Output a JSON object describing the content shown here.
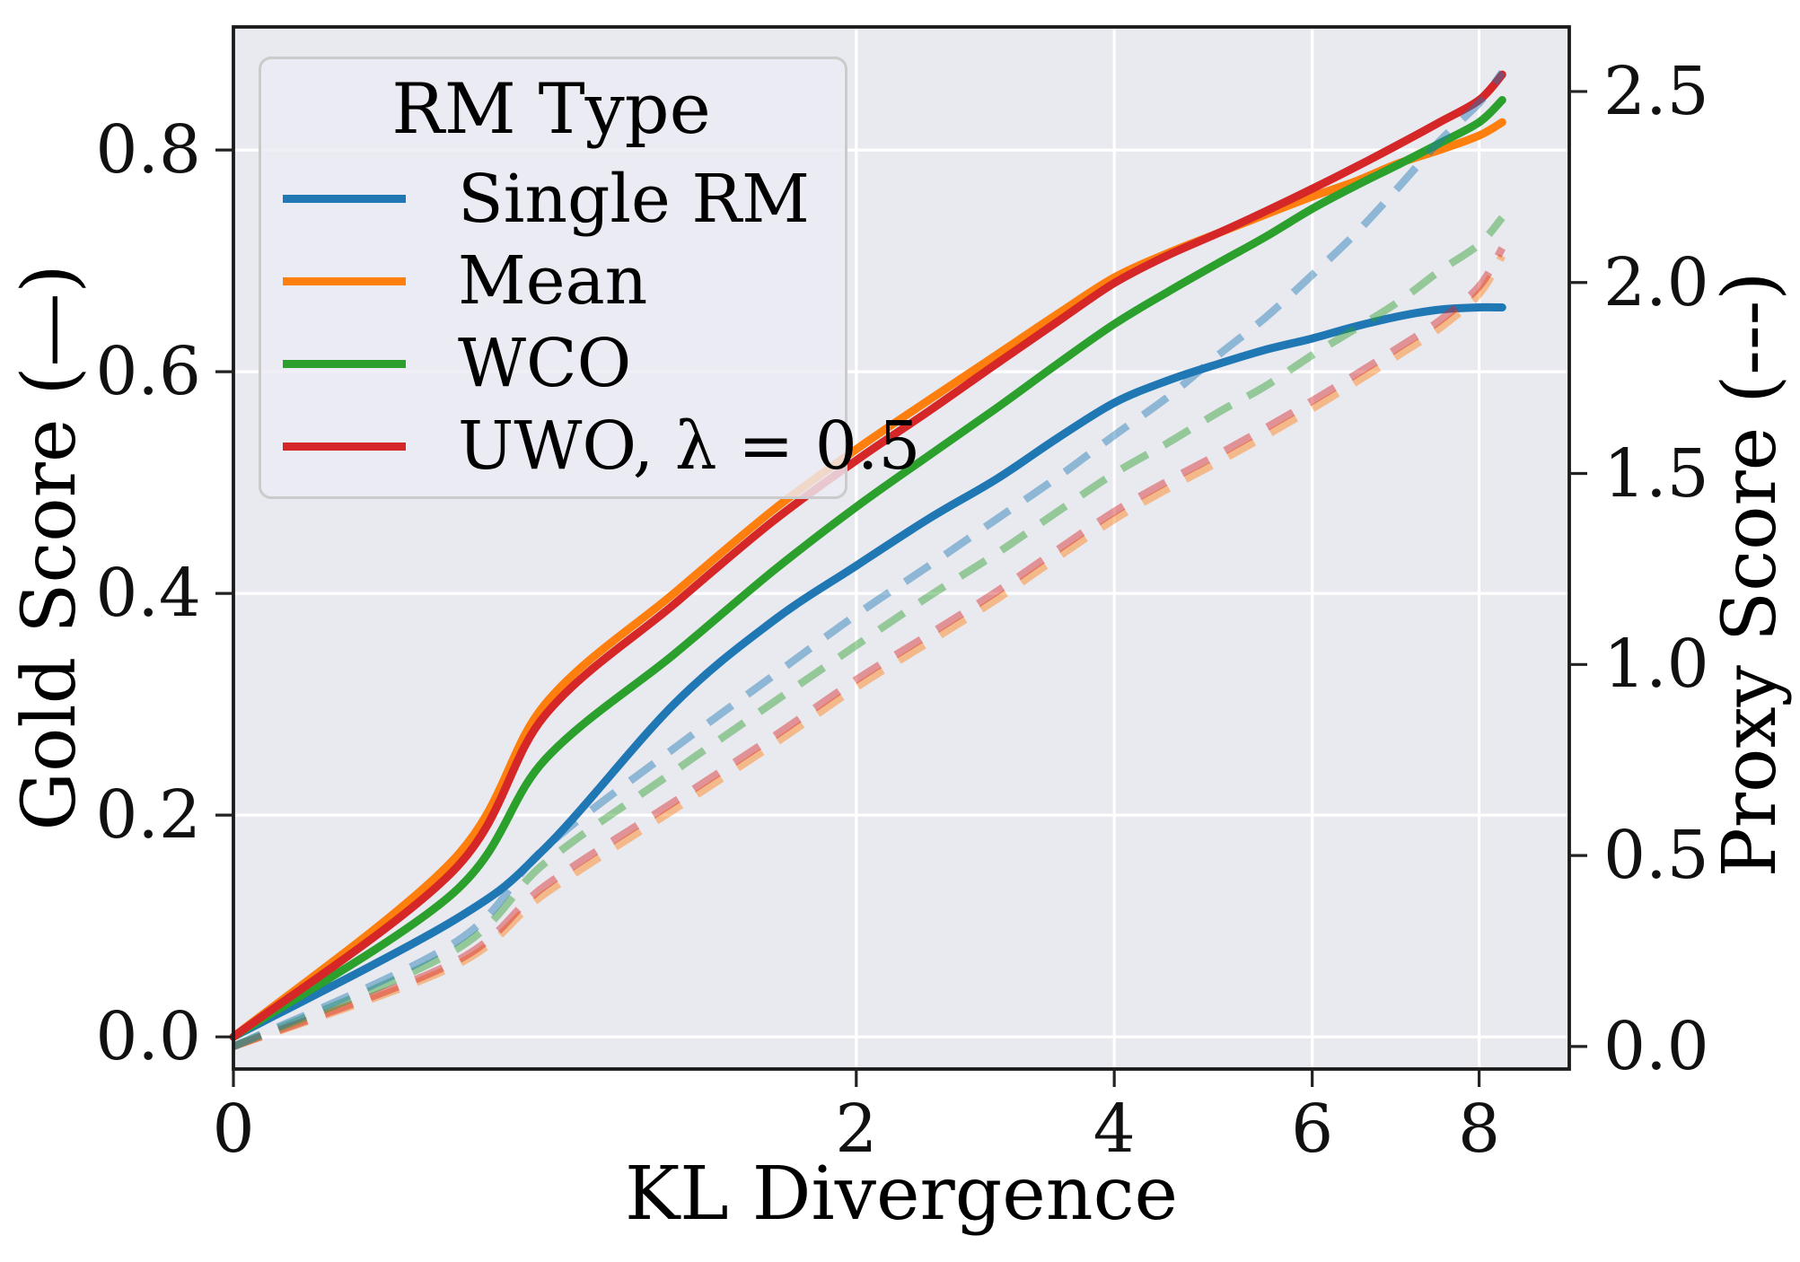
{
  "chart_data": {
    "type": "line",
    "title": "",
    "x_axis": {
      "label": "KL Divergence",
      "scale": "sqrt",
      "range": [
        0,
        9.2
      ],
      "ticks": [
        0,
        2,
        4,
        6,
        8
      ],
      "grid": true
    },
    "y_left": {
      "label": "Gold Score (—)",
      "range": [
        -0.029,
        0.911
      ],
      "ticks": [
        "0.0",
        "0.2",
        "0.4",
        "0.6",
        "0.8"
      ],
      "tick_values": [
        0.0,
        0.2,
        0.4,
        0.6,
        0.8
      ],
      "grid": true
    },
    "y_right": {
      "label": "Proxy Score (---)",
      "range": [
        -0.059,
        2.669
      ],
      "ticks": [
        "0.0",
        "0.5",
        "1.0",
        "1.5",
        "2.0",
        "2.5"
      ],
      "tick_values": [
        0.0,
        0.5,
        1.0,
        1.5,
        2.0,
        2.5
      ],
      "grid": false
    },
    "legend": {
      "title": "RM Type",
      "position": "upper left"
    },
    "style": {
      "plot_bg": "#e9e9f0",
      "grid_color": "#ffffff",
      "spine_color": "#1a1a1a",
      "dashed_opacity": 0.45
    },
    "series": [
      {
        "name": "Single RM",
        "color": "#1f77b4",
        "gold": [
          [
            0,
            0
          ],
          [
            0.25,
            0.105
          ],
          [
            0.5,
            0.17
          ],
          [
            1,
            0.3
          ],
          [
            1.5,
            0.375
          ],
          [
            2,
            0.425
          ],
          [
            2.5,
            0.468
          ],
          [
            3,
            0.503
          ],
          [
            3.5,
            0.54
          ],
          [
            4,
            0.572
          ],
          [
            4.5,
            0.592
          ],
          [
            5,
            0.607
          ],
          [
            5.5,
            0.62
          ],
          [
            6,
            0.63
          ],
          [
            6.5,
            0.641
          ],
          [
            7,
            0.65
          ],
          [
            7.5,
            0.656
          ],
          [
            8,
            0.658
          ],
          [
            8.3,
            0.658
          ]
        ],
        "proxy": [
          [
            0,
            0
          ],
          [
            0.25,
            0.27
          ],
          [
            0.5,
            0.52
          ],
          [
            1,
            0.78
          ],
          [
            1.5,
            0.97
          ],
          [
            2,
            1.13
          ],
          [
            2.5,
            1.26
          ],
          [
            3,
            1.38
          ],
          [
            3.5,
            1.49
          ],
          [
            4,
            1.6
          ],
          [
            4.5,
            1.7
          ],
          [
            5,
            1.81
          ],
          [
            5.5,
            1.91
          ],
          [
            6,
            2.02
          ],
          [
            6.5,
            2.13
          ],
          [
            7,
            2.25
          ],
          [
            7.5,
            2.37
          ],
          [
            8,
            2.47
          ],
          [
            8.3,
            2.55
          ]
        ]
      },
      {
        "name": "Mean",
        "color": "#ff7f0e",
        "gold": [
          [
            0,
            0
          ],
          [
            0.25,
            0.16
          ],
          [
            0.5,
            0.3
          ],
          [
            1,
            0.4
          ],
          [
            1.5,
            0.475
          ],
          [
            2,
            0.53
          ],
          [
            2.5,
            0.575
          ],
          [
            3,
            0.615
          ],
          [
            3.5,
            0.652
          ],
          [
            4,
            0.685
          ],
          [
            4.5,
            0.707
          ],
          [
            5,
            0.725
          ],
          [
            5.5,
            0.742
          ],
          [
            6,
            0.758
          ],
          [
            6.5,
            0.772
          ],
          [
            7,
            0.788
          ],
          [
            7.5,
            0.8
          ],
          [
            8,
            0.813
          ],
          [
            8.3,
            0.825
          ]
        ],
        "proxy": [
          [
            0,
            0
          ],
          [
            0.25,
            0.21
          ],
          [
            0.5,
            0.4
          ],
          [
            1,
            0.62
          ],
          [
            1.5,
            0.79
          ],
          [
            2,
            0.94
          ],
          [
            2.5,
            1.06
          ],
          [
            3,
            1.17
          ],
          [
            3.5,
            1.28
          ],
          [
            4,
            1.38
          ],
          [
            4.5,
            1.46
          ],
          [
            5,
            1.53
          ],
          [
            5.5,
            1.6
          ],
          [
            6,
            1.67
          ],
          [
            6.5,
            1.74
          ],
          [
            7,
            1.81
          ],
          [
            7.5,
            1.88
          ],
          [
            8,
            1.97
          ],
          [
            8.3,
            2.07
          ]
        ]
      },
      {
        "name": "WCO",
        "color": "#2ca02c",
        "gold": [
          [
            0,
            0
          ],
          [
            0.25,
            0.13
          ],
          [
            0.5,
            0.25
          ],
          [
            1,
            0.345
          ],
          [
            1.5,
            0.42
          ],
          [
            2,
            0.478
          ],
          [
            2.5,
            0.525
          ],
          [
            3,
            0.567
          ],
          [
            3.5,
            0.607
          ],
          [
            4,
            0.643
          ],
          [
            4.5,
            0.672
          ],
          [
            5,
            0.698
          ],
          [
            5.5,
            0.722
          ],
          [
            6,
            0.747
          ],
          [
            6.5,
            0.768
          ],
          [
            7,
            0.787
          ],
          [
            7.5,
            0.806
          ],
          [
            8,
            0.825
          ],
          [
            8.3,
            0.845
          ]
        ],
        "proxy": [
          [
            0,
            0
          ],
          [
            0.25,
            0.25
          ],
          [
            0.5,
            0.48
          ],
          [
            1,
            0.72
          ],
          [
            1.5,
            0.9
          ],
          [
            2,
            1.05
          ],
          [
            2.5,
            1.18
          ],
          [
            3,
            1.29
          ],
          [
            3.5,
            1.4
          ],
          [
            4,
            1.5
          ],
          [
            4.5,
            1.58
          ],
          [
            5,
            1.66
          ],
          [
            5.5,
            1.73
          ],
          [
            6,
            1.81
          ],
          [
            6.5,
            1.88
          ],
          [
            7,
            1.95
          ],
          [
            7.5,
            2.03
          ],
          [
            8,
            2.1
          ],
          [
            8.3,
            2.17
          ]
        ]
      },
      {
        "name": "UWO, λ = 0.5",
        "color": "#d62728",
        "gold": [
          [
            0,
            0
          ],
          [
            0.25,
            0.15
          ],
          [
            0.5,
            0.29
          ],
          [
            1,
            0.39
          ],
          [
            1.5,
            0.465
          ],
          [
            2,
            0.52
          ],
          [
            2.5,
            0.565
          ],
          [
            3,
            0.607
          ],
          [
            3.5,
            0.645
          ],
          [
            4,
            0.68
          ],
          [
            4.5,
            0.705
          ],
          [
            5,
            0.725
          ],
          [
            5.5,
            0.745
          ],
          [
            6,
            0.765
          ],
          [
            6.5,
            0.785
          ],
          [
            7,
            0.805
          ],
          [
            7.5,
            0.825
          ],
          [
            8,
            0.845
          ],
          [
            8.3,
            0.868
          ]
        ],
        "proxy": [
          [
            0,
            0
          ],
          [
            0.25,
            0.22
          ],
          [
            0.5,
            0.42
          ],
          [
            1,
            0.64
          ],
          [
            1.5,
            0.81
          ],
          [
            2,
            0.96
          ],
          [
            2.5,
            1.08
          ],
          [
            3,
            1.19
          ],
          [
            3.5,
            1.3
          ],
          [
            4,
            1.4
          ],
          [
            4.5,
            1.48
          ],
          [
            5,
            1.55
          ],
          [
            5.5,
            1.62
          ],
          [
            6,
            1.69
          ],
          [
            6.5,
            1.76
          ],
          [
            7,
            1.83
          ],
          [
            7.5,
            1.9
          ],
          [
            8,
            1.99
          ],
          [
            8.3,
            2.09
          ]
        ]
      }
    ]
  }
}
